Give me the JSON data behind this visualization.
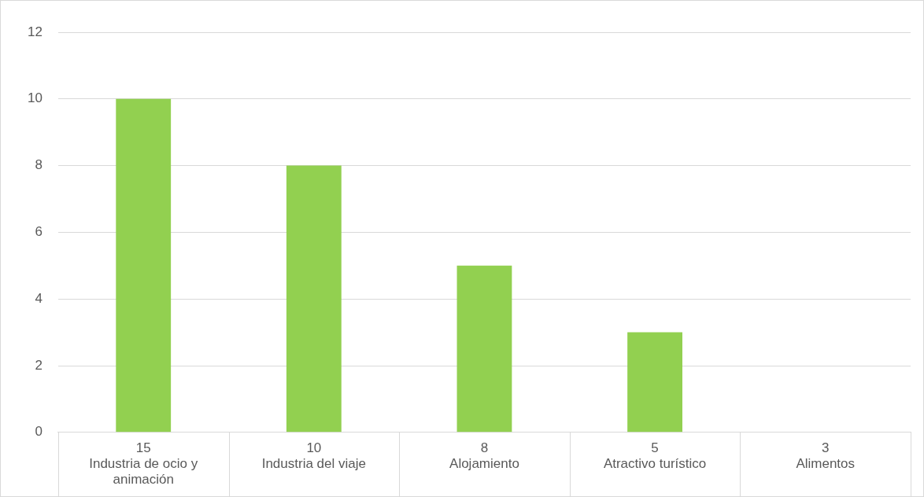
{
  "chart_data": {
    "type": "bar",
    "categories": [
      "15\nIndustria de ocio y animación",
      "10\nIndustria del viaje",
      "8\nAlojamiento",
      "5\nAtractivo turístico",
      "3\nAlimentos"
    ],
    "values": [
      10,
      8,
      5,
      3,
      0
    ],
    "color": "#92d050",
    "ylim": [
      0,
      12
    ],
    "yticks": [
      0,
      2,
      4,
      6,
      8,
      10,
      12
    ],
    "grid": "y",
    "legend": false
  }
}
